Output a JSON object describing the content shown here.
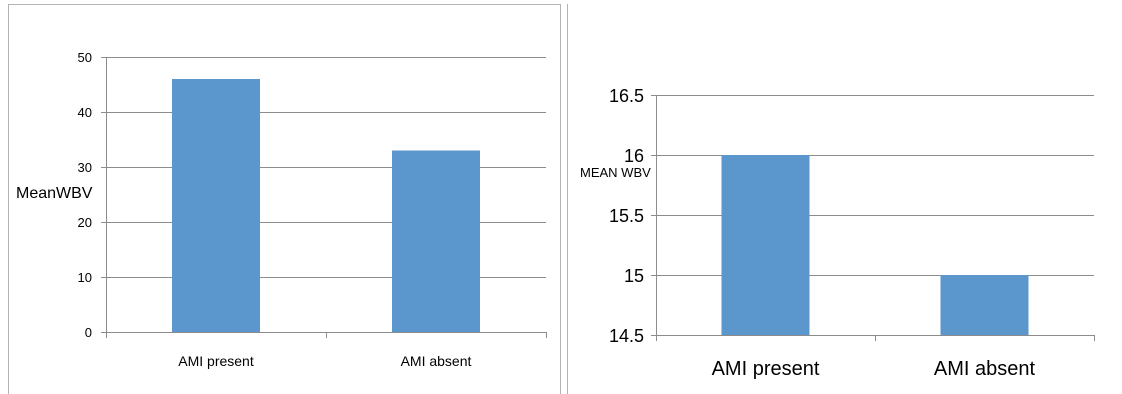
{
  "colors": {
    "bar": "#5b96cc",
    "grid": "#8c8c8c",
    "axis": "#8c8c8c",
    "frame": "#b4b4b4",
    "text": "#000000"
  },
  "chart_data": [
    {
      "type": "bar",
      "categories": [
        "AMI present",
        "AMI absent"
      ],
      "values": [
        46,
        33
      ],
      "ylabel": "MeanWBV",
      "ylim": [
        0,
        50
      ],
      "yticks": [
        0,
        10,
        20,
        30,
        40,
        50
      ],
      "yticks_text": [
        "0",
        "10",
        "20",
        "30",
        "40",
        "50"
      ],
      "grid": true,
      "legend": "none"
    },
    {
      "type": "bar",
      "categories": [
        "AMI present",
        "AMI absent"
      ],
      "values": [
        16,
        15
      ],
      "ylabel": "MEAN WBV",
      "ylim": [
        14.5,
        16.5
      ],
      "yticks": [
        14.5,
        15,
        15.5,
        16,
        16.5
      ],
      "yticks_text": [
        "14.5",
        "15",
        "15.5",
        "16",
        "16.5"
      ],
      "grid": true,
      "legend": "none"
    }
  ]
}
